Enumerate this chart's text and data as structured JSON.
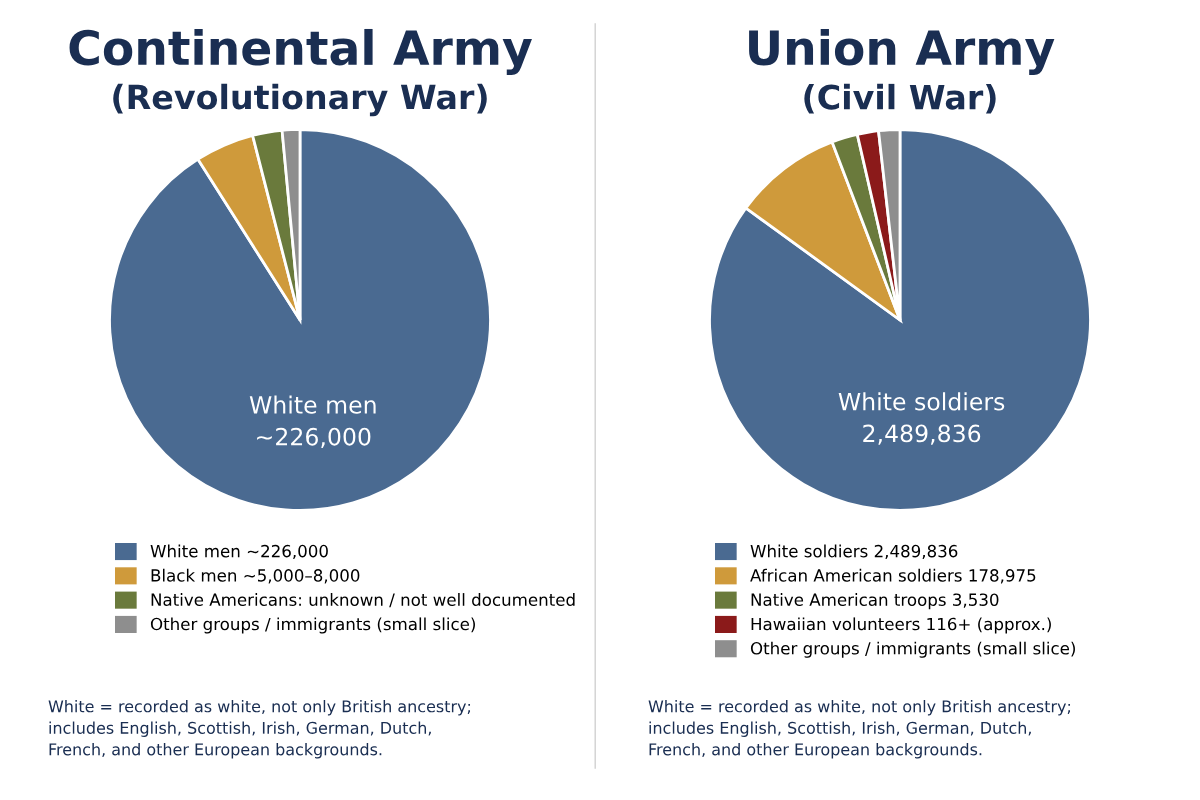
{
  "chart_data": [
    {
      "type": "pie",
      "title": "Continental Army",
      "subtitle": "(Revolutionary War)",
      "categories": [
        "White men ~226,000",
        "Black men ~5,000–8,000",
        "Native Americans: unknown / not well documented",
        "Other groups / immigrants (small slice)"
      ],
      "values": [
        91,
        5,
        2.5,
        1.5
      ],
      "colors": [
        "#4a6a91",
        "#cf9a3b",
        "#6a7a3c",
        "#8e8e8e"
      ],
      "legend": "bottom",
      "annotations": [
        "White men\n~226,000",
        "White = recorded as white, not only British ancestry;\nincludes English, Scottish, Irish, German, Dutch,\nFrench, and other European backgrounds."
      ]
    },
    {
      "type": "pie",
      "title": "Union Army",
      "subtitle": "(Civil War)",
      "categories": [
        "White soldiers 2,489,836",
        "African American soldiers 178,975",
        "Native American troops 3,530",
        "Hawaiian volunteers 116+ (approx.)",
        "Other groups / immigrants (small slice)"
      ],
      "values": [
        85,
        9.2,
        2.2,
        1.8,
        1.8
      ],
      "colors": [
        "#4a6a91",
        "#cf9a3b",
        "#6a7a3c",
        "#8b1a1a",
        "#8e8e8e"
      ],
      "legend": "bottom",
      "annotations": [
        "White soldiers\n2,489,836",
        "White = recorded as white, not only British ancestry;\nincludes English, Scottish, Irish, German, Dutch,\nFrench, and other European backgrounds."
      ]
    }
  ]
}
